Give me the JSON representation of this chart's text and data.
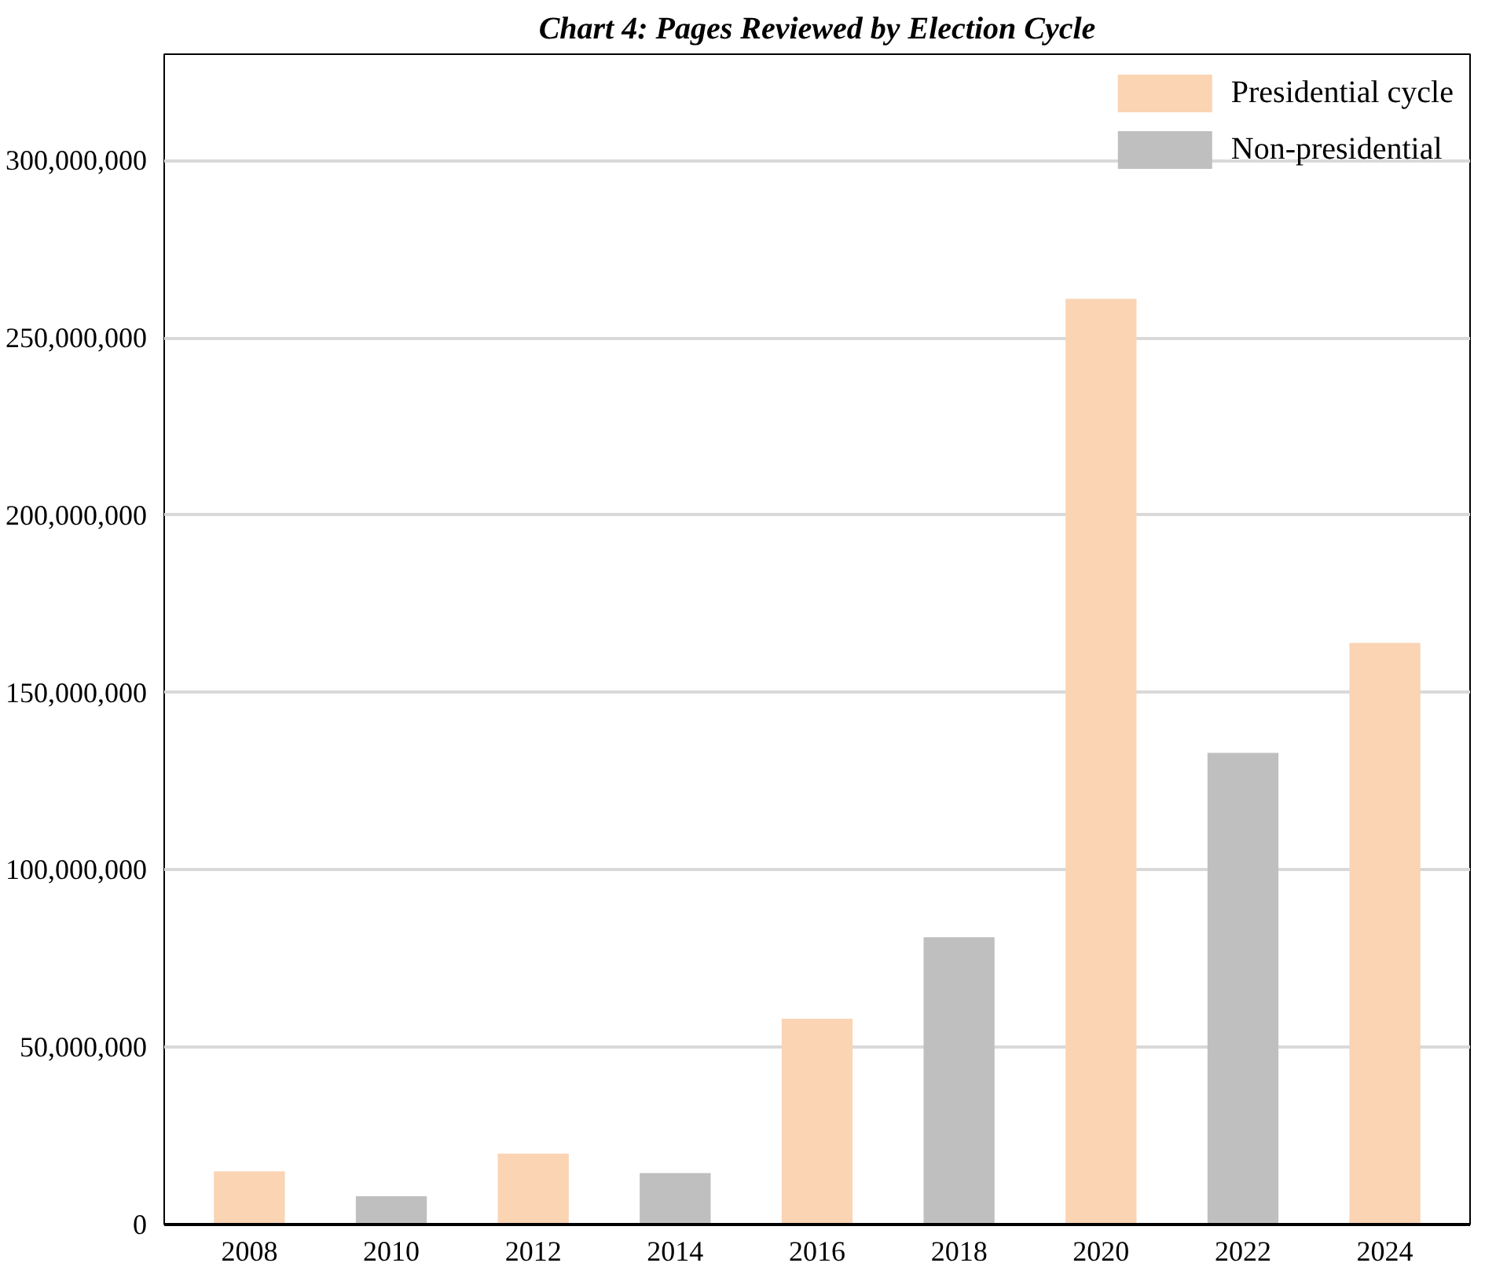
{
  "chart_data": {
    "type": "bar",
    "title": "Chart 4: Pages Reviewed by Election Cycle",
    "categories": [
      "2008",
      "2010",
      "2012",
      "2014",
      "2016",
      "2018",
      "2020",
      "2022",
      "2024"
    ],
    "series": [
      {
        "name": "Presidential cycle",
        "color": "#fbd4b4",
        "values": [
          15000000,
          null,
          20000000,
          null,
          58000000,
          null,
          261000000,
          null,
          164000000
        ]
      },
      {
        "name": "Non-presidential",
        "color": "#bfbfbf",
        "values": [
          null,
          8000000,
          null,
          14500000,
          null,
          81000000,
          null,
          133000000,
          null
        ]
      }
    ],
    "ylim": [
      0,
      330000000
    ],
    "yticks": [
      {
        "value": 0,
        "label": "0"
      },
      {
        "value": 50000000,
        "label": "50,000,000"
      },
      {
        "value": 100000000,
        "label": "100,000,000"
      },
      {
        "value": 150000000,
        "label": "150,000,000"
      },
      {
        "value": 200000000,
        "label": "200,000,000"
      },
      {
        "value": 250000000,
        "label": "250,000,000"
      },
      {
        "value": 300000000,
        "label": "300,000,000"
      }
    ],
    "grid": "y",
    "legend": "top right"
  }
}
